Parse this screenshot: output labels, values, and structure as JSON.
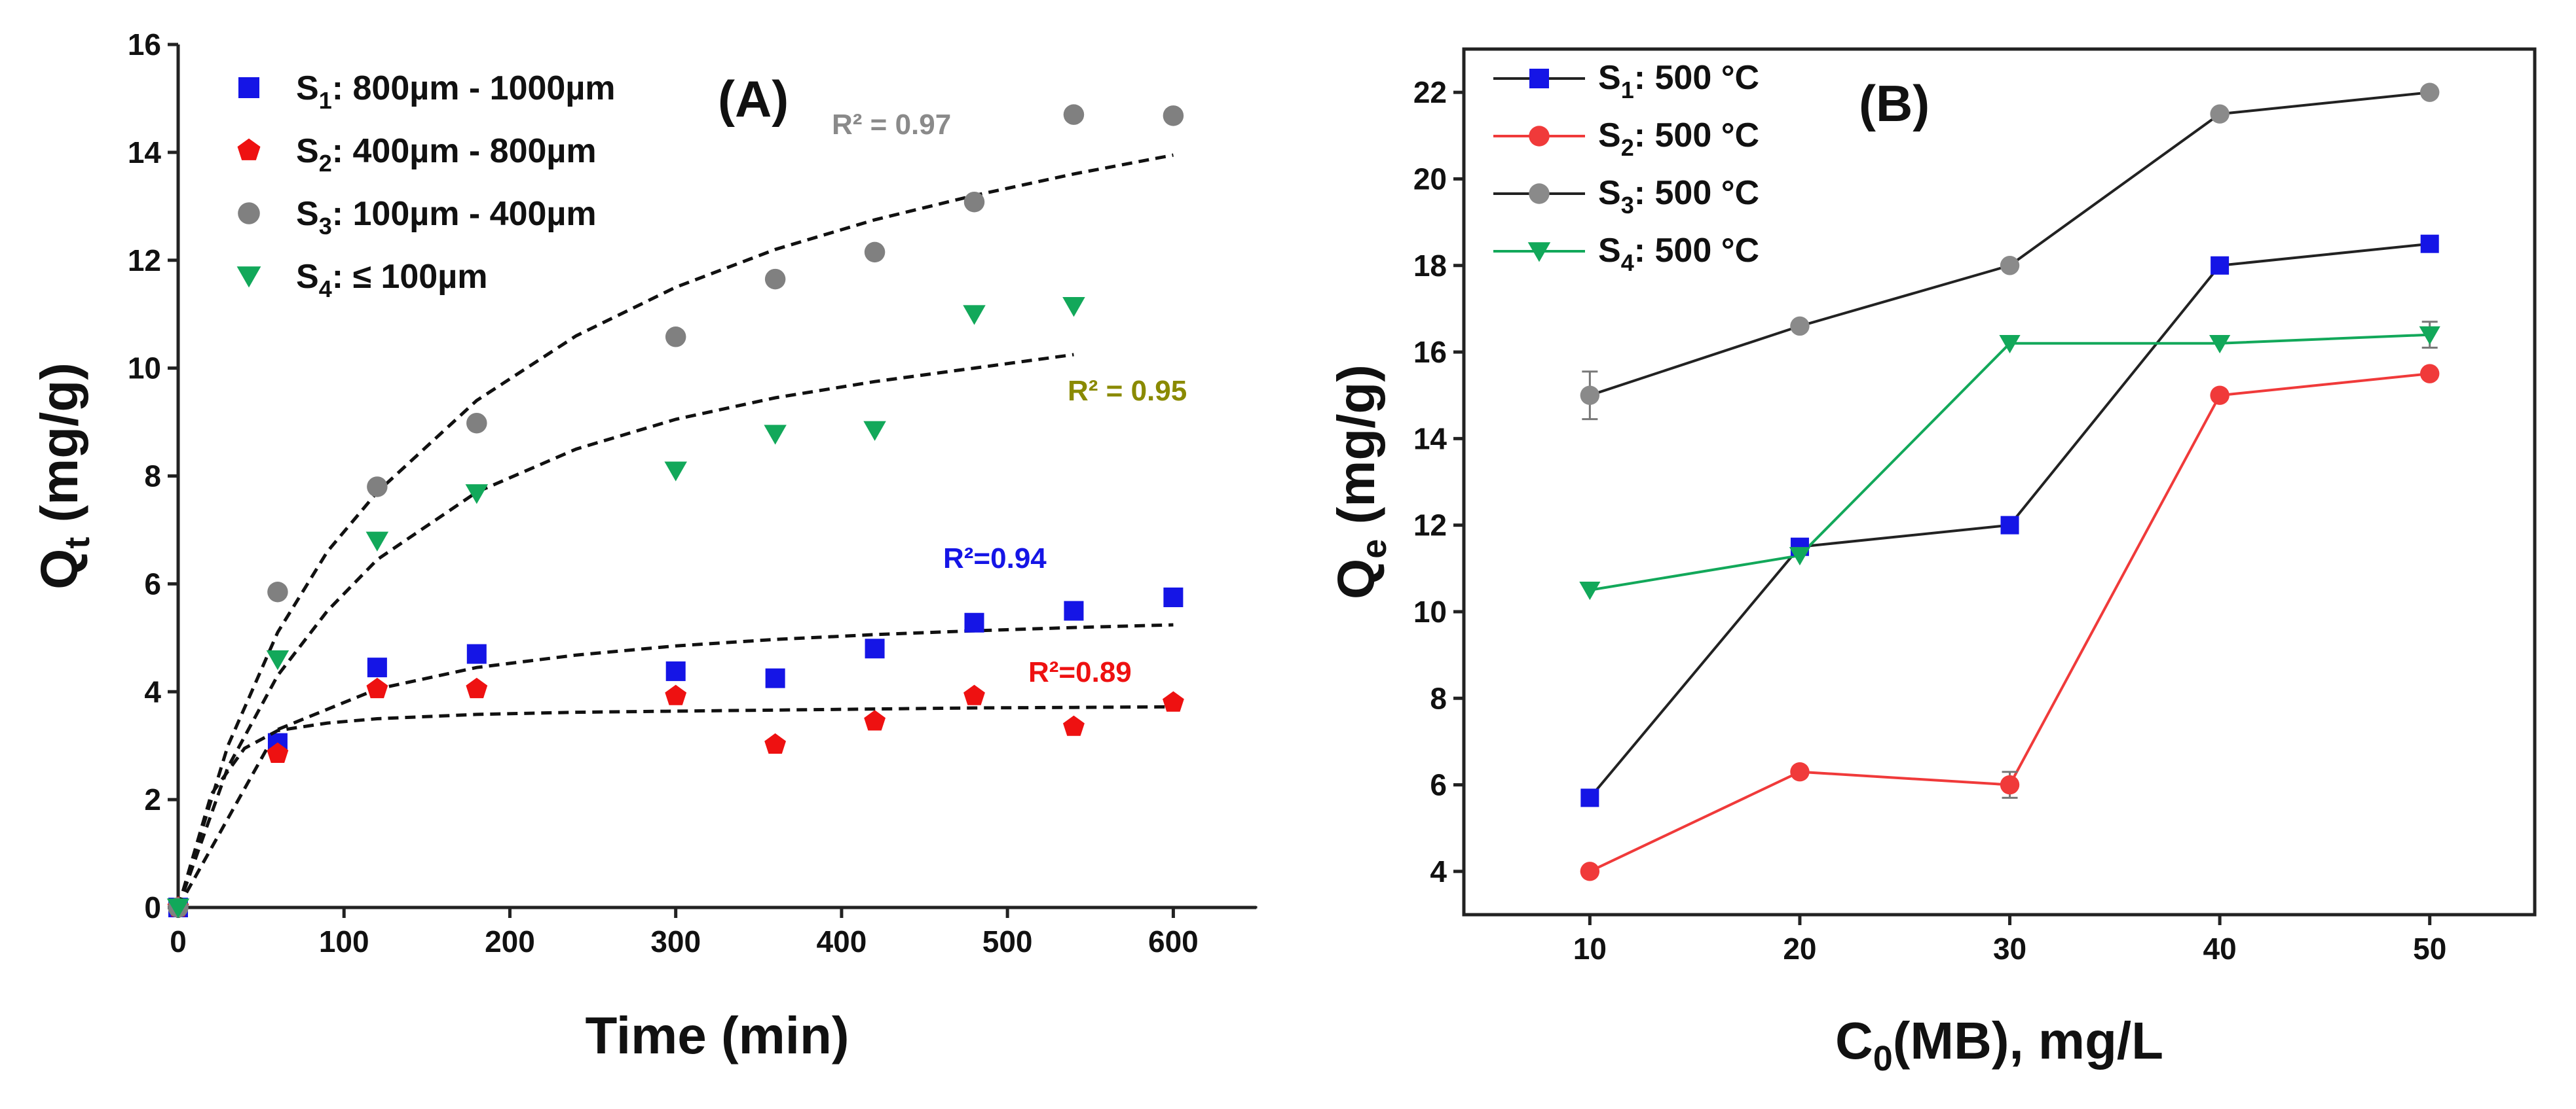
{
  "chart_data": [
    {
      "panel": "(A)",
      "type": "scatter",
      "xlabel": "Time (min)",
      "ylabel": "Qt (mg/g)",
      "ylabel_main": "Q",
      "ylabel_sub": "t",
      "ylabel_unit": " (mg/g)",
      "xlim": [
        0,
        650
      ],
      "ylim": [
        0,
        16
      ],
      "xticks": [
        0,
        100,
        200,
        300,
        400,
        500,
        600
      ],
      "yticks": [
        0,
        2,
        4,
        6,
        8,
        10,
        12,
        14,
        16
      ],
      "series": [
        {
          "name": "S1: 800µm - 1000µm",
          "label_main": "S",
          "label_sub": "1",
          "label_rest": ": 800µm - 1000µm",
          "color": "#1515e6",
          "marker": "square",
          "x": [
            0,
            60,
            120,
            180,
            300,
            360,
            420,
            480,
            540,
            600
          ],
          "y": [
            0,
            3.05,
            4.45,
            4.7,
            4.38,
            4.25,
            4.8,
            5.28,
            5.5,
            5.75
          ],
          "fit_x": [
            0,
            60,
            120,
            180,
            240,
            300,
            360,
            420,
            480,
            540,
            600
          ],
          "fit_y": [
            0,
            3.3,
            4.05,
            4.45,
            4.68,
            4.85,
            4.97,
            5.06,
            5.13,
            5.19,
            5.24
          ],
          "r2_label": "R²=0.94",
          "r2_color": "#1515e6"
        },
        {
          "name": "S2: 400µm - 800µm",
          "label_main": "S",
          "label_sub": "2",
          "label_rest": ": 400µm - 800µm",
          "color": "#ee1111",
          "marker": "pentagon",
          "x": [
            0,
            60,
            120,
            180,
            300,
            360,
            420,
            480,
            540,
            600
          ],
          "y": [
            0,
            2.85,
            4.05,
            4.05,
            3.92,
            3.02,
            3.45,
            3.92,
            3.35,
            3.8
          ],
          "fit_x": [
            0,
            20,
            40,
            60,
            90,
            120,
            180,
            240,
            300,
            360,
            420,
            480,
            540,
            600
          ],
          "fit_y": [
            0,
            2.1,
            2.95,
            3.28,
            3.42,
            3.5,
            3.58,
            3.62,
            3.64,
            3.66,
            3.68,
            3.7,
            3.71,
            3.72
          ],
          "r2_label": "R²=0.89",
          "r2_color": "#ee1111"
        },
        {
          "name": "S3: 100µm - 400µm",
          "label_main": "S",
          "label_sub": "3",
          "label_rest": ": 100µm - 400µm",
          "color": "#808080",
          "marker": "circle",
          "x": [
            0,
            60,
            120,
            180,
            300,
            360,
            420,
            480,
            540,
            600
          ],
          "y": [
            0,
            5.85,
            7.8,
            8.98,
            10.58,
            11.65,
            12.15,
            13.08,
            14.7,
            14.68
          ],
          "fit_x": [
            0,
            30,
            60,
            90,
            120,
            180,
            240,
            300,
            360,
            420,
            480,
            540,
            600
          ],
          "fit_y": [
            0,
            3.0,
            5.1,
            6.6,
            7.7,
            9.4,
            10.6,
            11.5,
            12.2,
            12.75,
            13.2,
            13.6,
            13.95
          ],
          "r2_label": "R² = 0.97",
          "r2_color": "#8a8a8a"
        },
        {
          "name": "S4: ≤ 100µm",
          "label_main": "S",
          "label_sub": "4",
          "label_rest": ": ≤ 100µm",
          "color": "#12a85a",
          "marker": "triangle-down",
          "x": [
            0,
            60,
            120,
            180,
            300,
            360,
            420,
            480,
            540
          ],
          "y": [
            0,
            4.6,
            6.8,
            7.68,
            8.1,
            8.78,
            8.85,
            11.0,
            11.15
          ],
          "fit_x": [
            0,
            30,
            60,
            90,
            120,
            180,
            240,
            300,
            360,
            420,
            480,
            540
          ],
          "fit_y": [
            0,
            2.6,
            4.3,
            5.5,
            6.45,
            7.7,
            8.5,
            9.05,
            9.45,
            9.75,
            10.0,
            10.25
          ],
          "r2_label": "R² = 0.95",
          "r2_color": "#8a8a00"
        }
      ]
    },
    {
      "panel": "(B)",
      "type": "line",
      "xlabel": "C0(MB), mg/L",
      "xlabel_main": "C",
      "xlabel_sub": "0",
      "xlabel_rest": "(MB), mg/L",
      "ylabel": "Qe (mg/g)",
      "ylabel_main": "Q",
      "ylabel_sub": "e",
      "ylabel_unit": " (mg/g)",
      "xlim": [
        4,
        55
      ],
      "ylim": [
        3,
        23
      ],
      "xticks": [
        10,
        20,
        30,
        40,
        50
      ],
      "yticks": [
        4,
        6,
        8,
        10,
        12,
        14,
        16,
        18,
        20,
        22
      ],
      "series": [
        {
          "name": "S1: 500 °C",
          "label_main": "S",
          "label_sub": "1",
          "label_rest": ":  500 °C",
          "color": "#1515e6",
          "line_color": "#222222",
          "marker": "square",
          "x": [
            10,
            20,
            30,
            40,
            50
          ],
          "y": [
            5.7,
            11.5,
            12.0,
            18.0,
            18.5
          ],
          "err": [
            0,
            0,
            0,
            0,
            0
          ]
        },
        {
          "name": "S2: 500 °C",
          "label_main": "S",
          "label_sub": "2",
          "label_rest": ":  500 °C",
          "color": "#f03a3a",
          "line_color": "#f03a3a",
          "marker": "circle",
          "x": [
            10,
            20,
            30,
            40,
            50
          ],
          "y": [
            4.0,
            6.3,
            6.0,
            15.0,
            15.5
          ],
          "err": [
            0,
            0,
            0.3,
            0,
            0
          ]
        },
        {
          "name": "S3: 500 °C",
          "label_main": "S",
          "label_sub": "3",
          "label_rest": ":  500 °C",
          "color": "#8a8a8a",
          "line_color": "#222222",
          "marker": "circle",
          "x": [
            10,
            20,
            30,
            40,
            50
          ],
          "y": [
            15.0,
            16.6,
            18.0,
            21.5,
            22.0
          ],
          "err": [
            0.55,
            0,
            0,
            0,
            0
          ]
        },
        {
          "name": "S4: 500 °C",
          "label_main": "S",
          "label_sub": "4",
          "label_rest": ":  500 °C",
          "color": "#12a85a",
          "line_color": "#12a85a",
          "marker": "triangle-down",
          "x": [
            10,
            20,
            30,
            40,
            50
          ],
          "y": [
            10.5,
            11.3,
            16.2,
            16.2,
            16.4
          ],
          "err": [
            0,
            0,
            0,
            0,
            0.3
          ]
        }
      ]
    }
  ]
}
